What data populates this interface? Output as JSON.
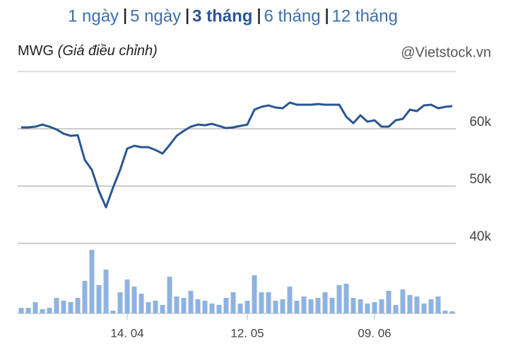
{
  "tabs": [
    "1 ngày",
    "5 ngày",
    "3 tháng",
    "6 tháng",
    "12 tháng"
  ],
  "selected_tab": 2,
  "chart_data": [
    {
      "type": "line",
      "title": "MWG",
      "subtitle": "(Giá điều chỉnh)",
      "source": "@Vietstock.vn",
      "series": [
        {
          "color": "#2a5592",
          "values": [
            60250,
            60250,
            60370,
            60740,
            60370,
            59880,
            59140,
            58770,
            58890,
            54570,
            52840,
            49140,
            46300,
            49750,
            52840,
            56540,
            57040,
            56790,
            56790,
            56300,
            55680,
            57160,
            58770,
            59630,
            60370,
            60740,
            60620,
            60860,
            60490,
            60120,
            60250,
            60490,
            60740,
            63330,
            63830,
            64080,
            63700,
            63580,
            64570,
            64200,
            64200,
            64200,
            64320,
            64200,
            64200,
            64200,
            62100,
            60990,
            62350,
            61240,
            61480,
            60370,
            60370,
            61480,
            61730,
            63330,
            63090,
            64080,
            64200,
            63580,
            63830,
            63950
          ]
        }
      ],
      "ylim": [
        40000,
        70000
      ],
      "yticks": [
        {
          "value": 40000,
          "label": "40k"
        },
        {
          "value": 50000,
          "label": "50k"
        },
        {
          "value": 60000,
          "label": "60k"
        }
      ],
      "grid": true
    },
    {
      "type": "bar",
      "categories": [
        null,
        null,
        null,
        null,
        null,
        null,
        null,
        null,
        null,
        null,
        null,
        null,
        null,
        null,
        null,
        "14. 04",
        null,
        null,
        null,
        null,
        null,
        null,
        null,
        null,
        null,
        null,
        null,
        null,
        null,
        null,
        null,
        null,
        "12. 05",
        null,
        null,
        null,
        null,
        null,
        null,
        null,
        null,
        null,
        null,
        null,
        null,
        null,
        null,
        null,
        null,
        null,
        "09. 06",
        null,
        null,
        null,
        null,
        null,
        null,
        null,
        null,
        null,
        null,
        null
      ],
      "values": [
        8,
        8,
        16,
        6,
        8,
        22,
        18,
        16,
        22,
        46,
        90,
        40,
        62,
        4,
        30,
        48,
        38,
        28,
        16,
        18,
        12,
        52,
        24,
        22,
        32,
        20,
        18,
        14,
        12,
        22,
        30,
        14,
        18,
        54,
        30,
        30,
        18,
        20,
        38,
        18,
        24,
        20,
        22,
        30,
        22,
        40,
        42,
        22,
        20,
        14,
        16,
        20,
        32,
        12,
        34,
        26,
        24,
        14,
        20,
        24,
        4,
        3
      ],
      "color": "#8fb3e0",
      "ylim": [
        0,
        100
      ]
    }
  ]
}
